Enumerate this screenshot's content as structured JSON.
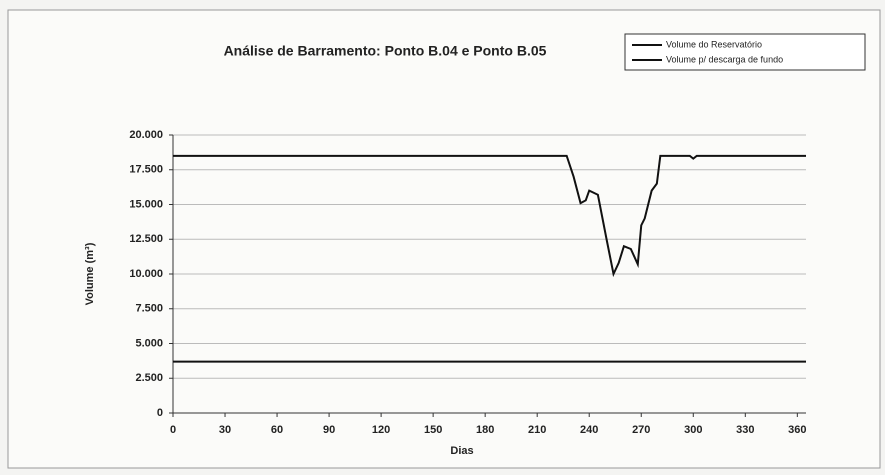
{
  "chart_data": {
    "type": "line",
    "title": "Análise de Barramento: Ponto B.04 e Ponto B.05",
    "x_label": "Dias",
    "y_label": "Volume (m³)",
    "x": [
      0,
      227,
      231,
      235,
      238,
      240,
      245,
      250,
      254,
      257,
      260,
      264,
      268,
      270,
      272,
      276,
      279,
      281,
      298,
      300,
      302,
      365
    ],
    "series": [
      {
        "name": "Volume do Reservatório",
        "color": "#111111",
        "values": [
          18500,
          18500,
          17000,
          15100,
          15300,
          16000,
          15700,
          12500,
          10000,
          10800,
          12000,
          11800,
          10700,
          13500,
          14000,
          16000,
          16500,
          18500,
          18500,
          18300,
          18500,
          18500
        ]
      },
      {
        "name": "Volume p/ descarga de fundo",
        "color": "#111111",
        "values": [
          3700,
          3700,
          3700,
          3700,
          3700,
          3700,
          3700,
          3700,
          3700,
          3700,
          3700,
          3700,
          3700,
          3700,
          3700,
          3700,
          3700,
          3700,
          3700,
          3700,
          3700,
          3700
        ]
      }
    ],
    "xlim": [
      0,
      365
    ],
    "xticks": [
      0,
      30,
      60,
      90,
      120,
      150,
      180,
      210,
      240,
      270,
      300,
      330,
      360
    ],
    "ylim": [
      0,
      20000
    ],
    "yticks": [
      0,
      {
        "value": 2500,
        "label": "2.500"
      },
      {
        "value": 5000,
        "label": "5.000"
      },
      {
        "value": 7500,
        "label": "7.500"
      },
      {
        "value": 10000,
        "label": "10.000"
      },
      {
        "value": 12500,
        "label": "12.500"
      },
      {
        "value": 15000,
        "label": "15.000"
      },
      {
        "value": 17500,
        "label": "17.500"
      },
      {
        "value": 20000,
        "label": "20.000"
      }
    ],
    "grid": true,
    "legend": "top-right"
  }
}
